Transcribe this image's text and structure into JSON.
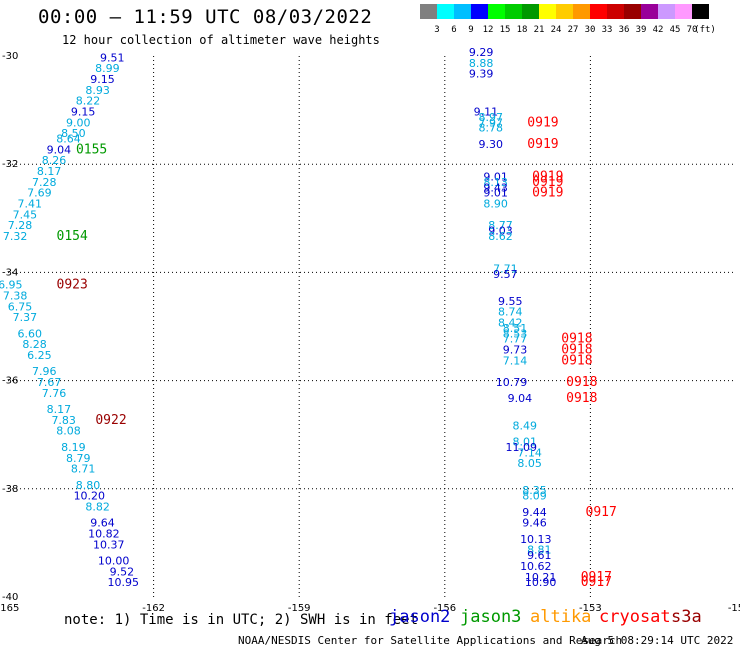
{
  "header": {
    "title": "00:00 – 11:59 UTC 08/03/2022",
    "subtitle": "12 hour collection of altimeter wave heights"
  },
  "legend": {
    "unit": "(ft)",
    "bins": [
      {
        "label": "3",
        "color": "#808080"
      },
      {
        "label": "6",
        "color": "#00ffff"
      },
      {
        "label": "9",
        "color": "#00bfff"
      },
      {
        "label": "12",
        "color": "#0000ff"
      },
      {
        "label": "15",
        "color": "#00ff00"
      },
      {
        "label": "18",
        "color": "#00cc00"
      },
      {
        "label": "21",
        "color": "#009900"
      },
      {
        "label": "24",
        "color": "#ffff00"
      },
      {
        "label": "27",
        "color": "#ffcc00"
      },
      {
        "label": "30",
        "color": "#ff9900"
      },
      {
        "label": "33",
        "color": "#ff0000"
      },
      {
        "label": "36",
        "color": "#cc0000"
      },
      {
        "label": "39",
        "color": "#990000"
      },
      {
        "label": "42",
        "color": "#990099"
      },
      {
        "label": "45",
        "color": "#cc99ff"
      },
      {
        "label": "70",
        "color": "#ff99ff"
      },
      {
        "label": "",
        "color": "#000000"
      }
    ]
  },
  "map": {
    "lon_range": [
      -165,
      -150
    ],
    "lat_range": [
      -40,
      -30
    ],
    "lon_ticks": [
      "-165",
      "-162",
      "-159",
      "-156",
      "-153",
      "-15"
    ],
    "lat_ticks": [
      "-30",
      "-32",
      "-34",
      "-36",
      "-38",
      "-40"
    ],
    "colors": {
      "jason2": "#0000cc",
      "jason3": "#009900",
      "cryosat": "#ff0000",
      "s3a": "#990000",
      "light": "#00aadd"
    },
    "left_track": [
      {
        "v": "9.51",
        "lon": -162.6,
        "lat": -30.1,
        "c": "jason2"
      },
      {
        "v": "8.99",
        "lon": -162.7,
        "lat": -30.3,
        "c": "light"
      },
      {
        "v": "9.15",
        "lon": -162.8,
        "lat": -30.5,
        "c": "jason2"
      },
      {
        "v": "8.93",
        "lon": -162.9,
        "lat": -30.7,
        "c": "light"
      },
      {
        "v": "8.22",
        "lon": -163.1,
        "lat": -30.9,
        "c": "light"
      },
      {
        "v": "9.15",
        "lon": -163.2,
        "lat": -31.1,
        "c": "jason2"
      },
      {
        "v": "9.00",
        "lon": -163.3,
        "lat": -31.3,
        "c": "light"
      },
      {
        "v": "8.50",
        "lon": -163.4,
        "lat": -31.5,
        "c": "light"
      },
      {
        "v": "8.64",
        "lon": -163.5,
        "lat": -31.6,
        "c": "light"
      },
      {
        "v": "9.04",
        "lon": -163.7,
        "lat": -31.8,
        "c": "jason2"
      },
      {
        "v": "8.26",
        "lon": -163.8,
        "lat": -32.0,
        "c": "light"
      },
      {
        "v": "8.17",
        "lon": -163.9,
        "lat": -32.2,
        "c": "light"
      },
      {
        "v": "7.28",
        "lon": -164.0,
        "lat": -32.4,
        "c": "light"
      },
      {
        "v": "7.69",
        "lon": -164.1,
        "lat": -32.6,
        "c": "light"
      },
      {
        "v": "7.41",
        "lon": -164.3,
        "lat": -32.8,
        "c": "light"
      },
      {
        "v": "7.45",
        "lon": -164.4,
        "lat": -33.0,
        "c": "light"
      },
      {
        "v": "7.28",
        "lon": -164.5,
        "lat": -33.2,
        "c": "light"
      },
      {
        "v": "7.32",
        "lon": -164.6,
        "lat": -33.4,
        "c": "light"
      },
      {
        "v": "6.95",
        "lon": -164.7,
        "lat": -34.3,
        "c": "light"
      },
      {
        "v": "7.38",
        "lon": -164.6,
        "lat": -34.5,
        "c": "light"
      },
      {
        "v": "6.75",
        "lon": -164.5,
        "lat": -34.7,
        "c": "light"
      },
      {
        "v": "7.37",
        "lon": -164.4,
        "lat": -34.9,
        "c": "light"
      },
      {
        "v": "6.60",
        "lon": -164.3,
        "lat": -35.2,
        "c": "light"
      },
      {
        "v": "8.28",
        "lon": -164.2,
        "lat": -35.4,
        "c": "light"
      },
      {
        "v": "6.25",
        "lon": -164.1,
        "lat": -35.6,
        "c": "light"
      },
      {
        "v": "7.96",
        "lon": -164.0,
        "lat": -35.9,
        "c": "light"
      },
      {
        "v": "7.67",
        "lon": -163.9,
        "lat": -36.1,
        "c": "light"
      },
      {
        "v": "7.76",
        "lon": -163.8,
        "lat": -36.3,
        "c": "light"
      },
      {
        "v": "8.17",
        "lon": -163.7,
        "lat": -36.6,
        "c": "light"
      },
      {
        "v": "7.83",
        "lon": -163.6,
        "lat": -36.8,
        "c": "light"
      },
      {
        "v": "8.08",
        "lon": -163.5,
        "lat": -37.0,
        "c": "light"
      },
      {
        "v": "8.19",
        "lon": -163.4,
        "lat": -37.3,
        "c": "light"
      },
      {
        "v": "8.79",
        "lon": -163.3,
        "lat": -37.5,
        "c": "light"
      },
      {
        "v": "8.71",
        "lon": -163.2,
        "lat": -37.7,
        "c": "light"
      },
      {
        "v": "8.80",
        "lon": -163.1,
        "lat": -38.0,
        "c": "light"
      },
      {
        "v": "10.20",
        "lon": -163.0,
        "lat": -38.2,
        "c": "jason2"
      },
      {
        "v": "8.82",
        "lon": -162.9,
        "lat": -38.4,
        "c": "light"
      },
      {
        "v": "9.64",
        "lon": -162.8,
        "lat": -38.7,
        "c": "jason2"
      },
      {
        "v": "10.82",
        "lon": -162.7,
        "lat": -38.9,
        "c": "jason2"
      },
      {
        "v": "10.37",
        "lon": -162.6,
        "lat": -39.1,
        "c": "jason2"
      },
      {
        "v": "10.00",
        "lon": -162.5,
        "lat": -39.4,
        "c": "jason2"
      },
      {
        "v": "9.52",
        "lon": -162.4,
        "lat": -39.6,
        "c": "jason2"
      },
      {
        "v": "10.95",
        "lon": -162.3,
        "lat": -39.8,
        "c": "jason2"
      }
    ],
    "right_track": [
      {
        "v": "9.29",
        "lon": -155.0,
        "lat": -30.0,
        "c": "jason2"
      },
      {
        "v": "8.88",
        "lon": -155.0,
        "lat": -30.2,
        "c": "light"
      },
      {
        "v": "9.39",
        "lon": -155.0,
        "lat": -30.4,
        "c": "jason2"
      },
      {
        "v": "9.11",
        "lon": -154.9,
        "lat": -31.1,
        "c": "jason2"
      },
      {
        "v": "8.97",
        "lon": -154.8,
        "lat": -31.2,
        "c": "light"
      },
      {
        "v": "7.97",
        "lon": -154.8,
        "lat": -31.3,
        "c": "light"
      },
      {
        "v": "8.78",
        "lon": -154.8,
        "lat": -31.4,
        "c": "light"
      },
      {
        "v": "9.30",
        "lon": -154.8,
        "lat": -31.7,
        "c": "jason2"
      },
      {
        "v": "9.01",
        "lon": -154.7,
        "lat": -32.3,
        "c": "jason2"
      },
      {
        "v": "8.13",
        "lon": -154.7,
        "lat": -32.4,
        "c": "light"
      },
      {
        "v": "9.43",
        "lon": -154.7,
        "lat": -32.5,
        "c": "jason2"
      },
      {
        "v": "9.01",
        "lon": -154.7,
        "lat": -32.6,
        "c": "jason2"
      },
      {
        "v": "8.90",
        "lon": -154.7,
        "lat": -32.8,
        "c": "light"
      },
      {
        "v": "8.77",
        "lon": -154.6,
        "lat": -33.2,
        "c": "light"
      },
      {
        "v": "9.03",
        "lon": -154.6,
        "lat": -33.3,
        "c": "jason2"
      },
      {
        "v": "8.62",
        "lon": -154.6,
        "lat": -33.4,
        "c": "light"
      },
      {
        "v": "7.71",
        "lon": -154.5,
        "lat": -34.0,
        "c": "light"
      },
      {
        "v": "9.57",
        "lon": -154.5,
        "lat": -34.1,
        "c": "jason2"
      },
      {
        "v": "9.55",
        "lon": -154.4,
        "lat": -34.6,
        "c": "jason2"
      },
      {
        "v": "8.74",
        "lon": -154.4,
        "lat": -34.8,
        "c": "light"
      },
      {
        "v": "8.42",
        "lon": -154.4,
        "lat": -35.0,
        "c": "light"
      },
      {
        "v": "8.51",
        "lon": -154.3,
        "lat": -35.1,
        "c": "light"
      },
      {
        "v": "8.53",
        "lon": -154.3,
        "lat": -35.2,
        "c": "light"
      },
      {
        "v": "7.77",
        "lon": -154.3,
        "lat": -35.3,
        "c": "light"
      },
      {
        "v": "9.73",
        "lon": -154.3,
        "lat": -35.5,
        "c": "jason2"
      },
      {
        "v": "7.14",
        "lon": -154.3,
        "lat": -35.7,
        "c": "light"
      },
      {
        "v": "10.79",
        "lon": -154.3,
        "lat": -36.1,
        "c": "jason2"
      },
      {
        "v": "9.04",
        "lon": -154.2,
        "lat": -36.4,
        "c": "jason2"
      },
      {
        "v": "8.49",
        "lon": -154.1,
        "lat": -36.9,
        "c": "light"
      },
      {
        "v": "8.01",
        "lon": -154.1,
        "lat": -37.2,
        "c": "light"
      },
      {
        "v": "11.09",
        "lon": -154.1,
        "lat": -37.3,
        "c": "jason2"
      },
      {
        "v": "7.14",
        "lon": -154.0,
        "lat": -37.4,
        "c": "light"
      },
      {
        "v": "8.05",
        "lon": -154.0,
        "lat": -37.6,
        "c": "light"
      },
      {
        "v": "8.35",
        "lon": -153.9,
        "lat": -38.1,
        "c": "light"
      },
      {
        "v": "8.09",
        "lon": -153.9,
        "lat": -38.2,
        "c": "light"
      },
      {
        "v": "9.44",
        "lon": -153.9,
        "lat": -38.5,
        "c": "jason2"
      },
      {
        "v": "9.46",
        "lon": -153.9,
        "lat": -38.7,
        "c": "jason2"
      },
      {
        "v": "10.13",
        "lon": -153.8,
        "lat": -39.0,
        "c": "jason2"
      },
      {
        "v": "8.81",
        "lon": -153.8,
        "lat": -39.2,
        "c": "light"
      },
      {
        "v": "9.61",
        "lon": -153.8,
        "lat": -39.3,
        "c": "jason2"
      },
      {
        "v": "10.62",
        "lon": -153.8,
        "lat": -39.5,
        "c": "jason2"
      },
      {
        "v": "10.21",
        "lon": -153.7,
        "lat": -39.7,
        "c": "jason2"
      },
      {
        "v": "10.90",
        "lon": -153.7,
        "lat": -39.8,
        "c": "jason2"
      }
    ],
    "time_labels": [
      {
        "t": "0155",
        "lon": -163.6,
        "lat": -31.8,
        "c": "jason3"
      },
      {
        "t": "0154",
        "lon": -164.0,
        "lat": -33.4,
        "c": "jason3"
      },
      {
        "t": "0923",
        "lon": -164.0,
        "lat": -34.3,
        "c": "s3a"
      },
      {
        "t": "0922",
        "lon": -163.2,
        "lat": -36.8,
        "c": "s3a"
      },
      {
        "t": "0919",
        "lon": -154.3,
        "lat": -31.3,
        "c": "cryosat"
      },
      {
        "t": "0919",
        "lon": -154.3,
        "lat": -31.7,
        "c": "cryosat"
      },
      {
        "t": "0919",
        "lon": -154.2,
        "lat": -32.3,
        "c": "cryosat"
      },
      {
        "t": "0919",
        "lon": -154.2,
        "lat": -32.4,
        "c": "cryosat"
      },
      {
        "t": "0919",
        "lon": -154.2,
        "lat": -32.6,
        "c": "cryosat"
      },
      {
        "t": "0918",
        "lon": -153.6,
        "lat": -35.3,
        "c": "cryosat"
      },
      {
        "t": "0918",
        "lon": -153.6,
        "lat": -35.5,
        "c": "cryosat"
      },
      {
        "t": "0918",
        "lon": -153.6,
        "lat": -35.7,
        "c": "cryosat"
      },
      {
        "t": "0918",
        "lon": -153.5,
        "lat": -36.1,
        "c": "cryosat"
      },
      {
        "t": "0918",
        "lon": -153.5,
        "lat": -36.4,
        "c": "cryosat"
      },
      {
        "t": "0917",
        "lon": -153.1,
        "lat": -38.5,
        "c": "cryosat"
      },
      {
        "t": "0917",
        "lon": -153.2,
        "lat": -39.7,
        "c": "cryosat"
      },
      {
        "t": "0917",
        "lon": -153.2,
        "lat": -39.8,
        "c": "cryosat"
      }
    ]
  },
  "footer": {
    "note": "note: 1) Time is in UTC; 2) SWH is in feet",
    "satellites": [
      {
        "name": "jason2",
        "color": "#0000cc"
      },
      {
        "name": "jason3",
        "color": "#009900"
      },
      {
        "name": "altika",
        "color": "#ff9900"
      },
      {
        "name": "cryosat",
        "color": "#ff0000"
      },
      {
        "name": "s3a",
        "color": "#990000"
      }
    ],
    "credit": "NOAA/NESDIS Center for Satellite Applications and Research",
    "timestamp": "Aug  5 08:29:14 UTC 2022"
  }
}
